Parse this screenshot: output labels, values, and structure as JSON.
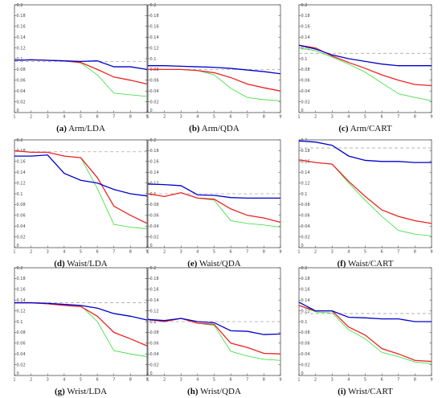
{
  "chart_data": [
    {
      "type": "line",
      "panel_letter": "(a)",
      "title": "Arm/LDA",
      "x": [
        1,
        2,
        3,
        4,
        5,
        6,
        7,
        8,
        9
      ],
      "ylim": [
        0,
        0.2
      ],
      "yticks": [
        "0",
        "0.02",
        "0.04",
        "0.06",
        "0.08",
        "0.1",
        "0.12",
        "0.14",
        "0.16",
        "0.18",
        "0.2"
      ],
      "xticks": [
        "1",
        "2",
        "3",
        "4",
        "5",
        "6",
        "7",
        "8",
        "9"
      ],
      "series": [
        {
          "color": "#0000cc",
          "values": [
            0.097,
            0.098,
            0.097,
            0.096,
            0.095,
            0.096,
            0.085,
            0.085,
            0.08
          ]
        },
        {
          "color": "#ee2222",
          "values": [
            0.097,
            0.098,
            0.097,
            0.096,
            0.093,
            0.08,
            0.066,
            0.06,
            0.053
          ]
        },
        {
          "color": "#33dd33",
          "values": [
            0.097,
            0.098,
            0.097,
            0.096,
            0.092,
            0.07,
            0.036,
            0.033,
            0.03
          ]
        },
        {
          "color": "#aaaaaa",
          "dashed": true,
          "values": [
            0.095,
            0.095,
            0.095,
            0.095,
            0.095,
            0.095,
            0.095,
            0.095,
            0.095
          ]
        }
      ]
    },
    {
      "type": "line",
      "panel_letter": "(b)",
      "title": "Arm/QDA",
      "x": [
        1,
        2,
        3,
        4,
        5,
        6,
        7,
        8,
        9
      ],
      "ylim": [
        0,
        0.2
      ],
      "yticks": [
        "0",
        "0.02",
        "0.04",
        "0.06",
        "0.08",
        "0.1",
        "0.12",
        "0.14",
        "0.16",
        "0.18",
        "0.2"
      ],
      "xticks": [
        "1",
        "2",
        "3",
        "4",
        "5",
        "6",
        "7",
        "8",
        "9"
      ],
      "series": [
        {
          "color": "#0000cc",
          "values": [
            0.087,
            0.087,
            0.086,
            0.085,
            0.084,
            0.082,
            0.079,
            0.076,
            0.072
          ]
        },
        {
          "color": "#ee2222",
          "values": [
            0.08,
            0.08,
            0.08,
            0.078,
            0.074,
            0.065,
            0.053,
            0.046,
            0.04
          ]
        },
        {
          "color": "#33dd33",
          "values": [
            0.08,
            0.08,
            0.08,
            0.078,
            0.07,
            0.045,
            0.028,
            0.024,
            0.022
          ]
        },
        {
          "color": "#aaaaaa",
          "dashed": true,
          "values": [
            0.08,
            0.08,
            0.08,
            0.08,
            0.08,
            0.08,
            0.08,
            0.08,
            0.08
          ]
        }
      ]
    },
    {
      "type": "line",
      "panel_letter": "(c)",
      "title": "Arm/CART",
      "x": [
        1,
        2,
        3,
        4,
        5,
        6,
        7,
        8,
        9
      ],
      "ylim": [
        0,
        0.2
      ],
      "yticks": [
        "0",
        "0.02",
        "0.04",
        "0.06",
        "0.08",
        "0.1",
        "0.12",
        "0.14",
        "0.16",
        "0.18",
        "0.2"
      ],
      "xticks": [
        "1",
        "2",
        "3",
        "4",
        "5",
        "6",
        "7",
        "8",
        "9"
      ],
      "series": [
        {
          "color": "#0000cc",
          "values": [
            0.125,
            0.118,
            0.107,
            0.1,
            0.095,
            0.09,
            0.087,
            0.087,
            0.087
          ]
        },
        {
          "color": "#ee2222",
          "values": [
            0.125,
            0.12,
            0.105,
            0.093,
            0.082,
            0.07,
            0.06,
            0.052,
            0.05
          ]
        },
        {
          "color": "#33dd33",
          "values": [
            0.12,
            0.115,
            0.103,
            0.09,
            0.075,
            0.055,
            0.035,
            0.028,
            0.022
          ]
        },
        {
          "color": "#aaaaaa",
          "dashed": true,
          "values": [
            0.11,
            0.11,
            0.11,
            0.11,
            0.11,
            0.11,
            0.11,
            0.11,
            0.11
          ]
        }
      ]
    },
    {
      "type": "line",
      "panel_letter": "(d)",
      "title": "Waist/LDA",
      "x": [
        1,
        2,
        3,
        4,
        5,
        6,
        7,
        8,
        9
      ],
      "ylim": [
        0,
        0.2
      ],
      "yticks": [
        "0",
        "0.02",
        "0.04",
        "0.06",
        "0.08",
        "0.1",
        "0.12",
        "0.14",
        "0.16",
        "0.18",
        "0.2"
      ],
      "xticks": [
        "1",
        "2",
        "3",
        "4",
        "5",
        "6",
        "7",
        "8",
        "9"
      ],
      "series": [
        {
          "color": "#0000cc",
          "values": [
            0.17,
            0.17,
            0.172,
            0.138,
            0.125,
            0.12,
            0.108,
            0.1,
            0.096
          ]
        },
        {
          "color": "#ee2222",
          "values": [
            0.18,
            0.177,
            0.177,
            0.17,
            0.167,
            0.13,
            0.077,
            0.06,
            0.045
          ]
        },
        {
          "color": "#33dd33",
          "values": [
            0.18,
            0.177,
            0.177,
            0.17,
            0.167,
            0.11,
            0.043,
            0.038,
            0.035
          ]
        },
        {
          "color": "#aaaaaa",
          "dashed": true,
          "values": [
            0.178,
            0.178,
            0.178,
            0.178,
            0.178,
            0.178,
            0.178,
            0.178,
            0.178
          ]
        }
      ]
    },
    {
      "type": "line",
      "panel_letter": "(e)",
      "title": "Waist/QDA",
      "x": [
        1,
        2,
        3,
        4,
        5,
        6,
        7,
        8,
        9
      ],
      "ylim": [
        0,
        0.2
      ],
      "yticks": [
        "0",
        "0.02",
        "0.04",
        "0.06",
        "0.08",
        "0.1",
        "0.12",
        "0.14",
        "0.16",
        "0.18",
        "0.2"
      ],
      "xticks": [
        "1",
        "2",
        "3",
        "4",
        "5",
        "6",
        "7",
        "8",
        "9"
      ],
      "series": [
        {
          "color": "#0000cc",
          "values": [
            0.118,
            0.117,
            0.115,
            0.098,
            0.097,
            0.093,
            0.092,
            0.092,
            0.092
          ]
        },
        {
          "color": "#ee2222",
          "values": [
            0.1,
            0.095,
            0.102,
            0.092,
            0.09,
            0.072,
            0.06,
            0.055,
            0.047
          ]
        },
        {
          "color": "#33dd33",
          "values": [
            0.1,
            0.095,
            0.102,
            0.092,
            0.088,
            0.05,
            0.045,
            0.042,
            0.038
          ]
        },
        {
          "color": "#aaaaaa",
          "dashed": true,
          "values": [
            0.1,
            0.1,
            0.1,
            0.1,
            0.1,
            0.1,
            0.1,
            0.1,
            0.1
          ]
        }
      ]
    },
    {
      "type": "line",
      "panel_letter": "(f)",
      "title": "Waist/CART",
      "x": [
        1,
        2,
        3,
        4,
        5,
        6,
        7,
        8,
        9
      ],
      "ylim": [
        0,
        0.2
      ],
      "yticks": [
        "0",
        "0.02",
        "0.04",
        "0.06",
        "0.08",
        "0.1",
        "0.12",
        "0.14",
        "0.16",
        "0.18",
        "0.2"
      ],
      "xticks": [
        "1",
        "2",
        "3",
        "4",
        "5",
        "6",
        "7",
        "8",
        "9"
      ],
      "series": [
        {
          "color": "#0000cc",
          "values": [
            0.198,
            0.196,
            0.19,
            0.17,
            0.162,
            0.16,
            0.16,
            0.158,
            0.158
          ]
        },
        {
          "color": "#ee2222",
          "values": [
            0.163,
            0.158,
            0.155,
            0.123,
            0.095,
            0.07,
            0.058,
            0.05,
            0.045
          ]
        },
        {
          "color": "#33dd33",
          "values": [
            0.163,
            0.158,
            0.155,
            0.12,
            0.088,
            0.058,
            0.032,
            0.025,
            0.022
          ]
        },
        {
          "color": "#aaaaaa",
          "dashed": true,
          "values": [
            0.185,
            0.185,
            0.185,
            0.185,
            0.185,
            0.185,
            0.185,
            0.185,
            0.185
          ]
        }
      ]
    },
    {
      "type": "line",
      "panel_letter": "(g)",
      "title": "Wrist/LDA",
      "x": [
        1,
        2,
        3,
        4,
        5,
        6,
        7,
        8,
        9
      ],
      "ylim": [
        0,
        0.2
      ],
      "yticks": [
        "0",
        "0.02",
        "0.04",
        "0.06",
        "0.08",
        "0.1",
        "0.12",
        "0.14",
        "0.16",
        "0.18",
        "0.2"
      ],
      "xticks": [
        "1",
        "2",
        "3",
        "4",
        "5",
        "6",
        "7",
        "8",
        "9"
      ],
      "series": [
        {
          "color": "#0000cc",
          "values": [
            0.135,
            0.135,
            0.134,
            0.132,
            0.13,
            0.125,
            0.115,
            0.11,
            0.103
          ]
        },
        {
          "color": "#ee2222",
          "values": [
            0.135,
            0.135,
            0.133,
            0.13,
            0.128,
            0.11,
            0.08,
            0.068,
            0.055
          ]
        },
        {
          "color": "#33dd33",
          "values": [
            0.135,
            0.135,
            0.133,
            0.13,
            0.13,
            0.1,
            0.046,
            0.04,
            0.035
          ]
        },
        {
          "color": "#aaaaaa",
          "dashed": true,
          "values": [
            0.135,
            0.135,
            0.135,
            0.135,
            0.135,
            0.135,
            0.135,
            0.135,
            0.135
          ]
        }
      ]
    },
    {
      "type": "line",
      "panel_letter": "(h)",
      "title": "Wrist/QDA",
      "x": [
        1,
        2,
        3,
        4,
        5,
        6,
        7,
        8,
        9
      ],
      "ylim": [
        0,
        0.2
      ],
      "yticks": [
        "0",
        "0.02",
        "0.04",
        "0.06",
        "0.08",
        "0.1",
        "0.12",
        "0.14",
        "0.16",
        "0.18",
        "0.2"
      ],
      "xticks": [
        "1",
        "2",
        "3",
        "4",
        "5",
        "6",
        "7",
        "8",
        "9"
      ],
      "series": [
        {
          "color": "#0000cc",
          "values": [
            0.104,
            0.102,
            0.106,
            0.1,
            0.098,
            0.083,
            0.082,
            0.076,
            0.077
          ]
        },
        {
          "color": "#ee2222",
          "values": [
            0.104,
            0.1,
            0.106,
            0.097,
            0.095,
            0.06,
            0.052,
            0.041,
            0.04
          ]
        },
        {
          "color": "#33dd33",
          "values": [
            0.104,
            0.1,
            0.106,
            0.097,
            0.093,
            0.045,
            0.036,
            0.03,
            0.028
          ]
        },
        {
          "color": "#aaaaaa",
          "dashed": true,
          "values": [
            0.1,
            0.1,
            0.1,
            0.1,
            0.1,
            0.1,
            0.1,
            0.1,
            0.1
          ]
        }
      ]
    },
    {
      "type": "line",
      "panel_letter": "(i)",
      "title": "Wrist/CART",
      "x": [
        1,
        2,
        3,
        4,
        5,
        6,
        7,
        8,
        9
      ],
      "ylim": [
        0,
        0.2
      ],
      "yticks": [
        "0",
        "0.02",
        "0.04",
        "0.06",
        "0.08",
        "0.1",
        "0.12",
        "0.14",
        "0.16",
        "0.18",
        "0.2"
      ],
      "xticks": [
        "1",
        "2",
        "3",
        "4",
        "5",
        "6",
        "7",
        "8",
        "9"
      ],
      "series": [
        {
          "color": "#0000cc",
          "values": [
            0.136,
            0.12,
            0.12,
            0.108,
            0.107,
            0.105,
            0.105,
            0.1,
            0.1
          ]
        },
        {
          "color": "#ee2222",
          "values": [
            0.13,
            0.12,
            0.12,
            0.09,
            0.075,
            0.05,
            0.04,
            0.028,
            0.026
          ]
        },
        {
          "color": "#33dd33",
          "values": [
            0.13,
            0.118,
            0.116,
            0.085,
            0.068,
            0.043,
            0.035,
            0.025,
            0.022
          ]
        },
        {
          "color": "#aaaaaa",
          "dashed": true,
          "values": [
            0.115,
            0.115,
            0.115,
            0.115,
            0.115,
            0.115,
            0.115,
            0.115,
            0.115
          ]
        }
      ]
    }
  ]
}
